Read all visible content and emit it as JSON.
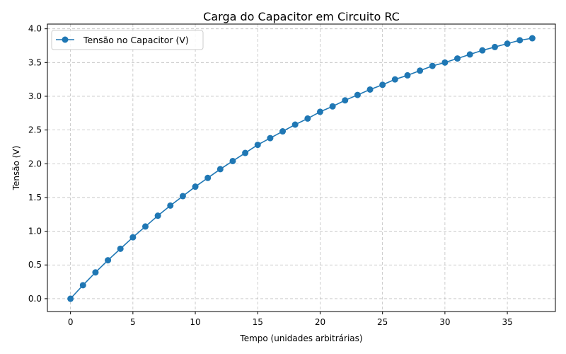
{
  "chart_data": {
    "type": "line",
    "title": "Carga do Capacitor em Circuito RC",
    "xlabel": "Tempo (unidades arbitrárias)",
    "ylabel": "Tensão (V)",
    "xlim": [
      -1.85,
      38.85
    ],
    "ylim": [
      -0.19,
      4.07
    ],
    "xticks": [
      0,
      5,
      10,
      15,
      20,
      25,
      30,
      35
    ],
    "yticks": [
      0.0,
      0.5,
      1.0,
      1.5,
      2.0,
      2.5,
      3.0,
      3.5,
      4.0
    ],
    "xtick_labels": [
      "0",
      "5",
      "10",
      "15",
      "20",
      "25",
      "30",
      "35"
    ],
    "ytick_labels": [
      "0.0",
      "0.5",
      "1.0",
      "1.5",
      "2.0",
      "2.5",
      "3.0",
      "3.5",
      "4.0"
    ],
    "grid": true,
    "legend_position": "top-left",
    "series": [
      {
        "name": "Tensão no Capacitor (V)",
        "color": "#1f77b4",
        "marker": "circle",
        "x": [
          0,
          1,
          2,
          3,
          4,
          5,
          6,
          7,
          8,
          9,
          10,
          11,
          12,
          13,
          14,
          15,
          16,
          17,
          18,
          19,
          20,
          21,
          22,
          23,
          24,
          25,
          26,
          27,
          28,
          29,
          30,
          31,
          32,
          33,
          34,
          35,
          36,
          37
        ],
        "y": [
          0.0,
          0.2,
          0.39,
          0.57,
          0.74,
          0.91,
          1.07,
          1.23,
          1.38,
          1.52,
          1.66,
          1.79,
          1.92,
          2.04,
          2.16,
          2.28,
          2.38,
          2.48,
          2.58,
          2.67,
          2.77,
          2.85,
          2.94,
          3.02,
          3.1,
          3.17,
          3.25,
          3.31,
          3.38,
          3.45,
          3.5,
          3.56,
          3.62,
          3.68,
          3.73,
          3.78,
          3.83,
          3.86
        ]
      }
    ]
  }
}
